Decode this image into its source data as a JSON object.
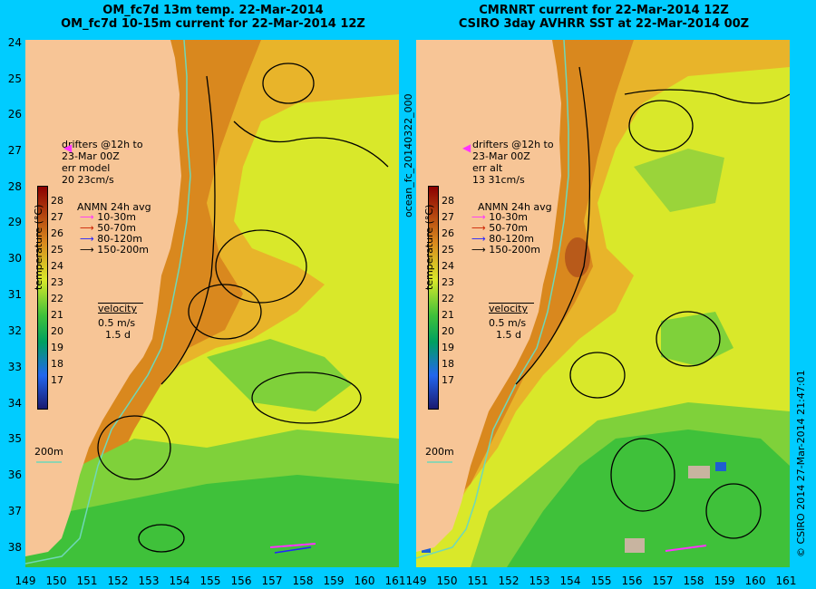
{
  "left": {
    "title_line1": "OM_fc7d 13m temp. 22-Mar-2014",
    "title_line2": "OM_fc7d 10-15m current for 22-Mar-2014 12Z",
    "drifters": [
      "drifters @12h to",
      "23-Mar 00Z",
      "err model",
      "20 23cm/s"
    ],
    "anmn_title": "ANMN 24h avg",
    "velocity_label": "velocity",
    "velocity_scale": [
      "0.5 m/s",
      "1.5 d"
    ],
    "isobath_label": "200m",
    "colorbar_label": "temperature (°C)"
  },
  "right": {
    "title_line1": "CMRNRT current for 22-Mar-2014 12Z",
    "title_line2": "CSIRO 3day AVHRR SST at 22-Mar-2014 00Z",
    "drifters": [
      "drifters @12h to",
      "23-Mar 00Z",
      "err alt",
      "13 31cm/s"
    ],
    "anmn_title": "ANMN 24h avg",
    "velocity_label": "velocity",
    "velocity_scale": [
      "0.5 m/s",
      "1.5 d"
    ],
    "isobath_label": "200m",
    "colorbar_label": "temperature (°C)",
    "side_label": "ocean_fc_20140322_000",
    "credit": "© CSIRO 2014   27-Mar-2014 21:47:01"
  },
  "anmn_depths": [
    {
      "label": "10-30m",
      "color": "#ff33ff"
    },
    {
      "label": "50-70m",
      "color": "#cc2200"
    },
    {
      "label": "80-120m",
      "color": "#2222ff"
    },
    {
      "label": "150-200m",
      "color": "#000000"
    }
  ],
  "colorbar_ticks": [
    "28",
    "27",
    "26",
    "25",
    "24",
    "23",
    "22",
    "21",
    "20",
    "19",
    "18",
    "17"
  ],
  "y_ticks": [
    "24",
    "25",
    "26",
    "27",
    "28",
    "29",
    "30",
    "31",
    "32",
    "33",
    "34",
    "35",
    "36",
    "37",
    "38"
  ],
  "x_ticks": [
    "149",
    "150",
    "151",
    "152",
    "153",
    "154",
    "155",
    "156",
    "157",
    "158",
    "159",
    "160",
    "161"
  ],
  "colors": {
    "background": "#00ccff",
    "land": "#f7c596",
    "warm": "#d9881e",
    "mid": "#d9e82a",
    "cool": "#3fc13a",
    "isobath": "#6fd8b8"
  }
}
